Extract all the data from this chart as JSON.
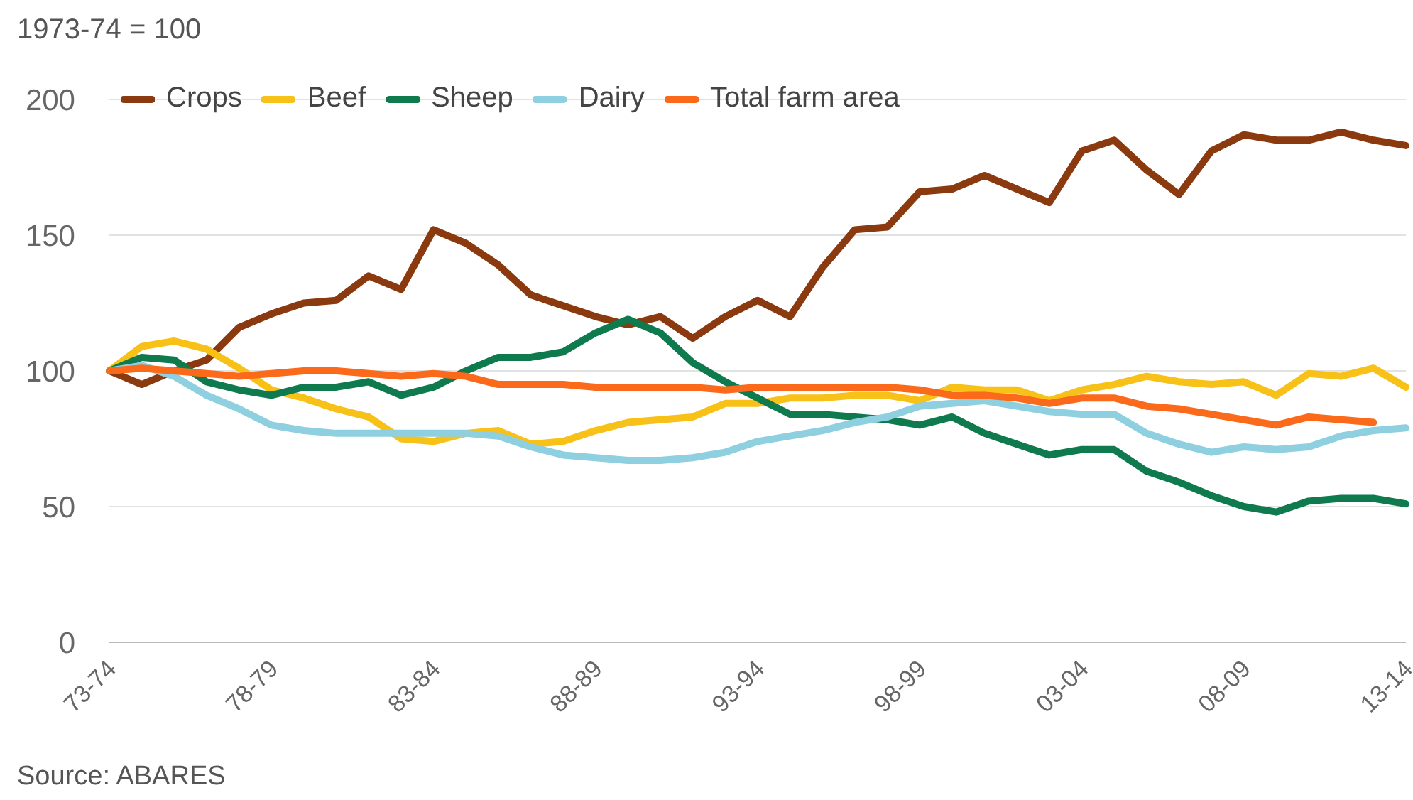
{
  "chart_data": {
    "type": "line",
    "ylabel": "1973-74 = 100",
    "annotations": [
      "Source: ABARES"
    ],
    "categories": [
      "73-74",
      null,
      null,
      null,
      null,
      "78-79",
      null,
      null,
      null,
      null,
      "83-84",
      null,
      null,
      null,
      null,
      "88-89",
      null,
      null,
      null,
      null,
      "93-94",
      null,
      null,
      null,
      null,
      "98-99",
      null,
      null,
      null,
      null,
      "03-04",
      null,
      null,
      null,
      null,
      "08-09",
      null,
      null,
      null,
      null,
      "13-14"
    ],
    "series": [
      {
        "name": "Crops",
        "color": "#8b3a0f",
        "values": [
          100,
          95,
          100,
          104,
          116,
          121,
          125,
          126,
          135,
          130,
          152,
          147,
          139,
          128,
          124,
          120,
          117,
          120,
          112,
          120,
          126,
          120,
          138,
          152,
          153,
          166,
          167,
          172,
          167,
          162,
          181,
          185,
          174,
          165,
          181,
          187,
          185,
          185,
          188,
          185,
          183
        ]
      },
      {
        "name": "Beef",
        "color": "#f7c117",
        "values": [
          100,
          109,
          111,
          108,
          101,
          93,
          90,
          86,
          83,
          75,
          74,
          77,
          78,
          73,
          74,
          78,
          81,
          82,
          83,
          88,
          88,
          90,
          90,
          91,
          91,
          89,
          94,
          93,
          93,
          89,
          93,
          95,
          98,
          96,
          95,
          96,
          91,
          99,
          98,
          101,
          94
        ]
      },
      {
        "name": "Sheep",
        "color": "#0f7a4d",
        "values": [
          100,
          105,
          104,
          96,
          93,
          91,
          94,
          94,
          96,
          91,
          94,
          100,
          105,
          105,
          107,
          114,
          119,
          114,
          103,
          96,
          90,
          84,
          84,
          83,
          82,
          80,
          83,
          77,
          73,
          69,
          71,
          71,
          63,
          59,
          54,
          50,
          48,
          52,
          53,
          53,
          51
        ]
      },
      {
        "name": "Dairy",
        "color": "#8ecfe0",
        "values": [
          100,
          102,
          98,
          91,
          86,
          80,
          78,
          77,
          77,
          77,
          77,
          77,
          76,
          72,
          69,
          68,
          67,
          67,
          68,
          70,
          74,
          76,
          78,
          81,
          83,
          87,
          88,
          89,
          87,
          85,
          84,
          84,
          77,
          73,
          70,
          72,
          71,
          72,
          76,
          78,
          79
        ]
      },
      {
        "name": "Total farm area",
        "color": "#fa6a1a",
        "values": [
          100,
          101,
          100,
          99,
          98,
          99,
          100,
          100,
          99,
          98,
          99,
          98,
          95,
          95,
          95,
          94,
          94,
          94,
          94,
          93,
          94,
          94,
          94,
          94,
          94,
          93,
          91,
          91,
          90,
          88,
          90,
          90,
          87,
          86,
          84,
          82,
          80,
          83,
          82,
          81,
          null
        ]
      }
    ],
    "ylim": [
      0,
      200
    ],
    "yticks": [
      0,
      50,
      100,
      150,
      200
    ],
    "grid": "y",
    "legend": "top left",
    "marker": "none",
    "line_style": "solid"
  }
}
